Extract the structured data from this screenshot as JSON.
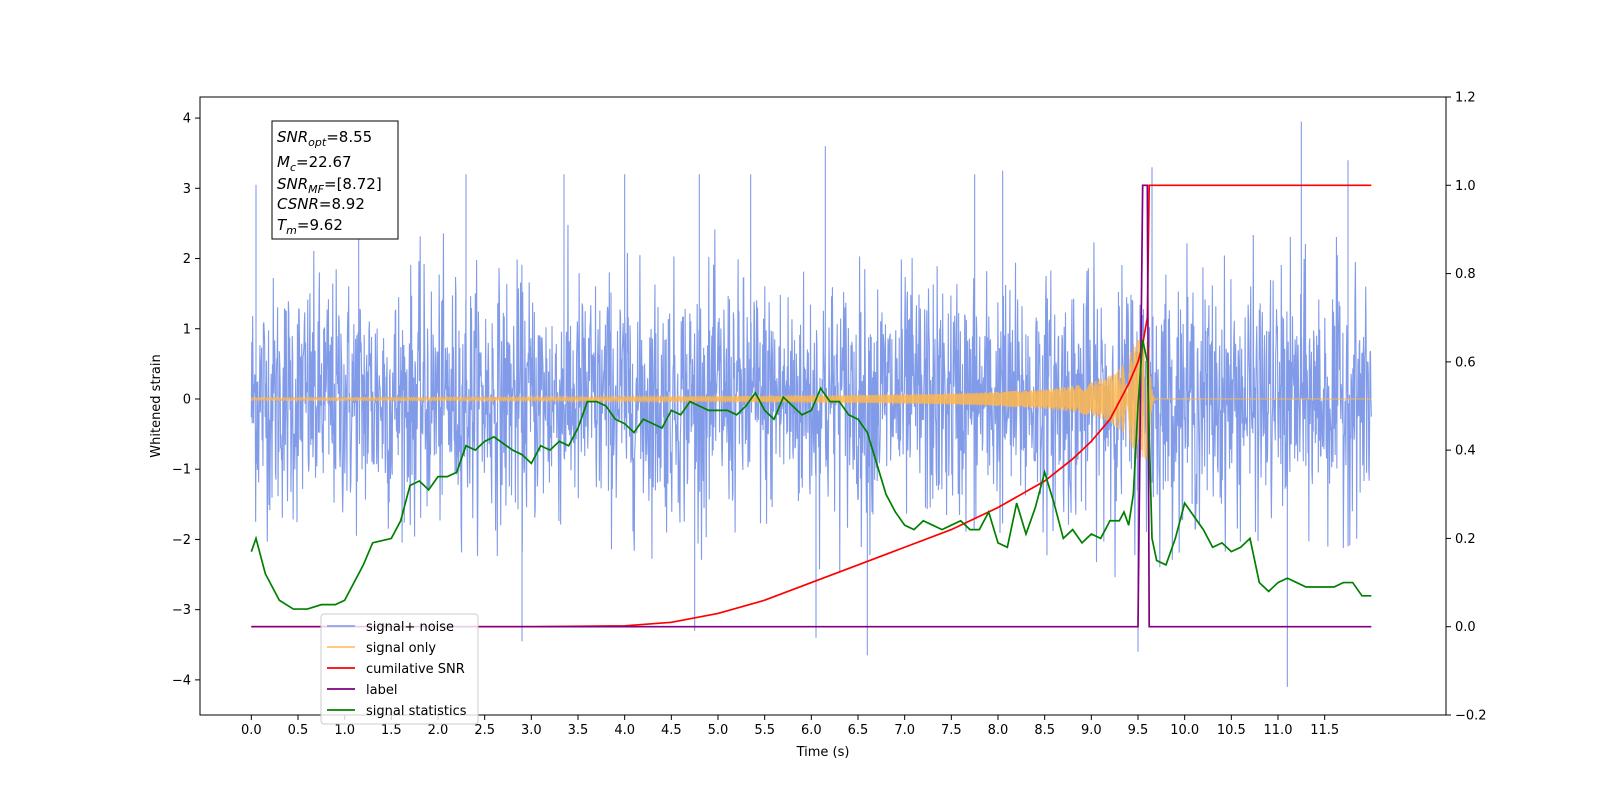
{
  "chart_data": {
    "type": "line",
    "xlabel": "Time (s)",
    "ylabel_left": "Whitened strain",
    "ylabel_right": "",
    "xlim": [
      -0.55,
      12.8
    ],
    "ylim_left": [
      -4.5,
      4.3
    ],
    "ylim_right": [
      -0.2,
      1.2
    ],
    "x_ticks": [
      0.0,
      0.5,
      1.0,
      1.5,
      2.0,
      2.5,
      3.0,
      3.5,
      4.0,
      4.5,
      5.0,
      5.5,
      6.0,
      6.5,
      7.0,
      7.5,
      8.0,
      8.5,
      9.0,
      9.5,
      10.0,
      10.5,
      11.0,
      11.5
    ],
    "x_tick_labels": [
      "0.0",
      "0.5",
      "1.0",
      "1.5",
      "2.0",
      "2.5",
      "3.0",
      "3.5",
      "4.0",
      "4.5",
      "5.0",
      "5.5",
      "6.0",
      "6.5",
      "7.0",
      "7.5",
      "8.0",
      "8.5",
      "9.0",
      "9.5",
      "10.0",
      "10.5",
      "11.0",
      "11.5"
    ],
    "y_ticks_left": [
      -4,
      -3,
      -2,
      -1,
      0,
      1,
      2,
      3,
      4
    ],
    "y_tick_labels_left": [
      "−4",
      "−3",
      "−2",
      "−1",
      "0",
      "1",
      "2",
      "3",
      "4"
    ],
    "y_ticks_right": [
      -0.2,
      0.0,
      0.2,
      0.4,
      0.6,
      0.8,
      1.0,
      1.2
    ],
    "y_tick_labels_right": [
      "−0.2",
      "0.0",
      "0.2",
      "0.4",
      "0.6",
      "0.8",
      "1.0",
      "1.2"
    ],
    "grid": false,
    "legend_position": "lower-left",
    "annotation": [
      {
        "base": "SNR",
        "sub": "opt",
        "value": "=8.55"
      },
      {
        "base": "M",
        "sub": "c",
        "value": "=22.67"
      },
      {
        "base": "SNR",
        "sub": "MF",
        "value": "=[8.72]"
      },
      {
        "base": "CSNR",
        "sub": "",
        "value": "=8.92"
      },
      {
        "base": "T",
        "sub": "m",
        "value": "=9.62"
      }
    ],
    "noise_envelope": {
      "x": [
        0.0,
        0.5,
        1.0,
        1.5,
        2.0,
        2.5,
        3.0,
        3.5,
        4.0,
        4.5,
        5.0,
        5.5,
        6.0,
        6.5,
        7.0,
        7.5,
        8.0,
        8.5,
        9.0,
        9.5,
        10.0,
        10.5,
        11.0,
        11.5,
        12.0
      ],
      "upper": [
        3.0,
        2.6,
        2.9,
        2.8,
        3.1,
        3.0,
        3.1,
        3.2,
        3.2,
        3.0,
        3.1,
        3.3,
        3.6,
        3.1,
        3.0,
        3.2,
        2.9,
        3.1,
        3.1,
        3.2,
        3.1,
        2.9,
        3.1,
        3.9,
        1.8
      ],
      "lower": [
        -2.4,
        -3.0,
        -2.8,
        -2.6,
        -2.7,
        -2.9,
        -3.4,
        -2.6,
        -2.8,
        -3.0,
        -2.9,
        -2.7,
        -3.3,
        -3.6,
        -3.0,
        -2.9,
        -3.1,
        -3.0,
        -2.9,
        -3.6,
        -2.7,
        -2.8,
        -4.1,
        -3.1,
        -2.3
      ],
      "spikes": [
        [
          0.05,
          3.05
        ],
        [
          1.15,
          2.95
        ],
        [
          2.3,
          3.2
        ],
        [
          3.35,
          3.2
        ],
        [
          4.0,
          3.2
        ],
        [
          4.8,
          3.2
        ],
        [
          5.35,
          3.2
        ],
        [
          6.15,
          3.6
        ],
        [
          7.75,
          3.2
        ],
        [
          8.05,
          3.25
        ],
        [
          9.65,
          3.3
        ],
        [
          11.25,
          3.95
        ],
        [
          11.75,
          3.4
        ],
        [
          2.9,
          -3.45
        ],
        [
          4.75,
          -3.3
        ],
        [
          6.6,
          -3.65
        ],
        [
          9.5,
          -3.6
        ],
        [
          11.1,
          -4.1
        ],
        [
          6.05,
          -3.4
        ]
      ]
    },
    "signal_only": {
      "t_merge": 9.62,
      "amplitude_peak": 0.85,
      "baseline": 0
    },
    "series": [
      {
        "name": "signal+ noise",
        "color": "#7a96e8",
        "axis": "left"
      },
      {
        "name": "signal only",
        "color": "#ffb74d",
        "axis": "left"
      },
      {
        "name": "cumilative SNR",
        "color": "#ff0000",
        "axis": "right",
        "x": [
          0.0,
          3.0,
          4.0,
          4.5,
          5.0,
          5.5,
          6.0,
          6.5,
          7.0,
          7.5,
          8.0,
          8.5,
          8.8,
          9.0,
          9.2,
          9.3,
          9.4,
          9.5,
          9.55,
          9.6,
          9.62,
          12.0
        ],
        "y": [
          0.0,
          0.0,
          0.002,
          0.01,
          0.03,
          0.06,
          0.1,
          0.14,
          0.18,
          0.22,
          0.27,
          0.33,
          0.38,
          0.42,
          0.47,
          0.51,
          0.55,
          0.6,
          0.64,
          0.7,
          1.0,
          1.0
        ]
      },
      {
        "name": "label",
        "color": "#800080",
        "axis": "right",
        "x": [
          0.0,
          9.5,
          9.55,
          9.6,
          9.62,
          12.0
        ],
        "y": [
          0.0,
          0.0,
          1.0,
          1.0,
          0.0,
          0.0
        ]
      },
      {
        "name": "signal statistics",
        "color": "#008000",
        "axis": "right",
        "x": [
          0.0,
          0.05,
          0.15,
          0.3,
          0.45,
          0.6,
          0.75,
          0.9,
          1.0,
          1.2,
          1.3,
          1.5,
          1.6,
          1.7,
          1.8,
          1.9,
          2.0,
          2.1,
          2.2,
          2.3,
          2.4,
          2.5,
          2.6,
          2.8,
          2.9,
          3.0,
          3.1,
          3.2,
          3.3,
          3.4,
          3.5,
          3.6,
          3.7,
          3.8,
          3.9,
          4.0,
          4.1,
          4.2,
          4.3,
          4.4,
          4.5,
          4.6,
          4.7,
          4.8,
          4.9,
          5.0,
          5.1,
          5.2,
          5.3,
          5.4,
          5.5,
          5.6,
          5.7,
          5.8,
          5.9,
          6.0,
          6.1,
          6.2,
          6.3,
          6.4,
          6.5,
          6.6,
          6.7,
          6.8,
          6.9,
          7.0,
          7.1,
          7.2,
          7.3,
          7.4,
          7.5,
          7.6,
          7.7,
          7.8,
          7.9,
          8.0,
          8.1,
          8.2,
          8.3,
          8.4,
          8.5,
          8.6,
          8.7,
          8.8,
          8.9,
          9.0,
          9.1,
          9.2,
          9.3,
          9.35,
          9.4,
          9.45,
          9.5,
          9.55,
          9.6,
          9.65,
          9.7,
          9.8,
          9.9,
          10.0,
          10.1,
          10.2,
          10.3,
          10.4,
          10.5,
          10.6,
          10.7,
          10.8,
          10.9,
          11.0,
          11.1,
          11.2,
          11.3,
          11.4,
          11.5,
          11.6,
          11.7,
          11.8,
          11.9,
          12.0
        ],
        "y": [
          0.17,
          0.2,
          0.12,
          0.06,
          0.04,
          0.04,
          0.05,
          0.05,
          0.06,
          0.14,
          0.19,
          0.2,
          0.24,
          0.32,
          0.33,
          0.31,
          0.34,
          0.34,
          0.35,
          0.41,
          0.4,
          0.42,
          0.43,
          0.4,
          0.39,
          0.37,
          0.41,
          0.4,
          0.42,
          0.41,
          0.45,
          0.51,
          0.51,
          0.5,
          0.47,
          0.46,
          0.44,
          0.47,
          0.46,
          0.45,
          0.49,
          0.48,
          0.51,
          0.5,
          0.49,
          0.49,
          0.49,
          0.48,
          0.5,
          0.53,
          0.49,
          0.47,
          0.52,
          0.5,
          0.48,
          0.49,
          0.54,
          0.51,
          0.51,
          0.48,
          0.47,
          0.44,
          0.37,
          0.3,
          0.26,
          0.23,
          0.22,
          0.24,
          0.23,
          0.22,
          0.23,
          0.24,
          0.22,
          0.22,
          0.26,
          0.19,
          0.18,
          0.28,
          0.21,
          0.27,
          0.35,
          0.28,
          0.2,
          0.22,
          0.19,
          0.21,
          0.2,
          0.24,
          0.24,
          0.26,
          0.23,
          0.3,
          0.5,
          0.65,
          0.6,
          0.2,
          0.15,
          0.14,
          0.2,
          0.28,
          0.25,
          0.22,
          0.18,
          0.19,
          0.17,
          0.18,
          0.2,
          0.1,
          0.08,
          0.1,
          0.11,
          0.1,
          0.09,
          0.09,
          0.09,
          0.09,
          0.1,
          0.1,
          0.07,
          0.07
        ]
      }
    ]
  }
}
